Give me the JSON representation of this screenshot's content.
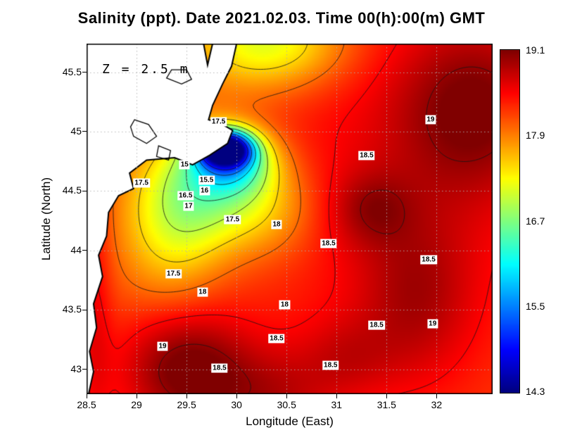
{
  "title": "Salinity (ppt). Date 2021.02.03. Time 00(h):00(m) GMT",
  "depth_label": "Z = 2.5 m",
  "axes": {
    "xlabel": "Longitude (East)",
    "ylabel": "Latitude (North)",
    "x_ticks": [
      28.5,
      29,
      29.5,
      30,
      30.5,
      31,
      31.5,
      32
    ],
    "y_ticks": [
      43,
      43.5,
      44,
      44.5,
      45,
      45.5
    ],
    "lon_range": [
      28.5,
      32.56
    ],
    "lat_range": [
      42.79,
      45.74
    ]
  },
  "colorbar": {
    "min": 14.3,
    "max": 19.1,
    "tick_labels": [
      "19.1",
      "17.9",
      "16.7",
      "15.5",
      "14.3"
    ]
  },
  "colors": {
    "land": "#ffffff",
    "coast": "#000000",
    "grid": "#b0b0b0",
    "contour": "#151515",
    "frame": "#000000"
  },
  "chart_data": {
    "type": "heatmap",
    "variable": "Salinity (ppt)",
    "date": "2021.02.03",
    "time": "00(h):00(m) GMT",
    "depth_m": 2.5,
    "colormap": "jet",
    "value_range": [
      14.3,
      19.1
    ],
    "contour_levels": [
      15,
      15.5,
      16,
      16.5,
      17,
      17.5,
      18,
      18.5,
      19
    ],
    "field_model": {
      "base": 18.2,
      "blobs": [
        {
          "x": 29.88,
          "y": 44.86,
          "sx": 0.18,
          "sy": 0.1,
          "amp": -3.6
        },
        {
          "x": 29.95,
          "y": 44.75,
          "sx": 0.28,
          "sy": 0.18,
          "amp": -1.5
        },
        {
          "x": 29.75,
          "y": 44.55,
          "sx": 0.42,
          "sy": 0.35,
          "amp": -1.15
        },
        {
          "x": 29.35,
          "y": 44.2,
          "sx": 0.38,
          "sy": 0.45,
          "amp": -0.8
        },
        {
          "x": 30.35,
          "y": 44.35,
          "sx": 0.35,
          "sy": 0.3,
          "amp": -0.5
        },
        {
          "x": 30.3,
          "y": 45.75,
          "sx": 0.55,
          "sy": 0.28,
          "amp": -1.15
        },
        {
          "x": 32.4,
          "y": 45.2,
          "sx": 0.55,
          "sy": 0.5,
          "amp": 0.75
        },
        {
          "x": 31.8,
          "y": 43.6,
          "sx": 0.4,
          "sy": 0.5,
          "amp": 0.5
        },
        {
          "x": 31.35,
          "y": 44.35,
          "sx": 0.28,
          "sy": 0.22,
          "amp": 0.45
        },
        {
          "x": 29.5,
          "y": 43.0,
          "sx": 0.45,
          "sy": 0.35,
          "amp": 0.95
        },
        {
          "x": 30.35,
          "y": 42.75,
          "sx": 0.45,
          "sy": 0.3,
          "amp": 0.5
        },
        {
          "x": 31.1,
          "y": 43.1,
          "sx": 0.35,
          "sy": 0.25,
          "amp": 0.35
        },
        {
          "x": 31.6,
          "y": 44.6,
          "sx": 1.2,
          "sy": 1.2,
          "amp": 0.35
        },
        {
          "x": 28.58,
          "y": 43.6,
          "sx": 0.12,
          "sy": 0.9,
          "amp": 0.35
        }
      ]
    },
    "contour_labels": [
      {
        "text": "17.5",
        "lon": 29.82,
        "lat": 45.08
      },
      {
        "text": "19",
        "lon": 31.94,
        "lat": 45.1
      },
      {
        "text": "18.5",
        "lon": 31.3,
        "lat": 44.8
      },
      {
        "text": "15",
        "lon": 29.48,
        "lat": 44.72
      },
      {
        "text": "17.5",
        "lon": 29.05,
        "lat": 44.57
      },
      {
        "text": "15.5",
        "lon": 29.7,
        "lat": 44.59
      },
      {
        "text": "16",
        "lon": 29.68,
        "lat": 44.5
      },
      {
        "text": "16.5",
        "lon": 29.49,
        "lat": 44.46
      },
      {
        "text": "17",
        "lon": 29.52,
        "lat": 44.37
      },
      {
        "text": "17.5",
        "lon": 29.96,
        "lat": 44.26
      },
      {
        "text": "18",
        "lon": 30.4,
        "lat": 44.22
      },
      {
        "text": "18.5",
        "lon": 30.92,
        "lat": 44.06
      },
      {
        "text": "18.5",
        "lon": 31.92,
        "lat": 43.92
      },
      {
        "text": "17.5",
        "lon": 29.37,
        "lat": 43.8
      },
      {
        "text": "18",
        "lon": 29.66,
        "lat": 43.65
      },
      {
        "text": "18",
        "lon": 30.48,
        "lat": 43.54
      },
      {
        "text": "18.5",
        "lon": 31.4,
        "lat": 43.37
      },
      {
        "text": "19",
        "lon": 31.96,
        "lat": 43.38
      },
      {
        "text": "18.5",
        "lon": 30.4,
        "lat": 43.26
      },
      {
        "text": "19",
        "lon": 29.26,
        "lat": 43.19
      },
      {
        "text": "18.5",
        "lon": 29.83,
        "lat": 43.01
      },
      {
        "text": "18.5",
        "lon": 30.94,
        "lat": 43.03
      }
    ],
    "land_polygon": [
      [
        28.5,
        45.74
      ],
      [
        29.67,
        45.74
      ],
      [
        29.71,
        45.56
      ],
      [
        29.76,
        45.74
      ],
      [
        30.0,
        45.74
      ],
      [
        29.95,
        45.55
      ],
      [
        29.86,
        45.4
      ],
      [
        29.76,
        45.22
      ],
      [
        29.72,
        45.1
      ],
      [
        29.84,
        45.07
      ],
      [
        29.96,
        45.01
      ],
      [
        29.91,
        44.9
      ],
      [
        29.73,
        44.8
      ],
      [
        29.56,
        44.72
      ],
      [
        29.38,
        44.78
      ],
      [
        29.1,
        44.76
      ],
      [
        28.93,
        44.65
      ],
      [
        28.97,
        44.52
      ],
      [
        28.82,
        44.46
      ],
      [
        28.72,
        44.32
      ],
      [
        28.7,
        44.12
      ],
      [
        28.62,
        43.96
      ],
      [
        28.66,
        43.78
      ],
      [
        28.57,
        43.55
      ],
      [
        28.6,
        43.35
      ],
      [
        28.53,
        43.15
      ],
      [
        28.57,
        42.98
      ],
      [
        28.52,
        42.79
      ],
      [
        28.5,
        42.79
      ]
    ],
    "lakes": [
      [
        [
          28.98,
          45.1
        ],
        [
          29.12,
          45.06
        ],
        [
          29.2,
          44.96
        ],
        [
          29.1,
          44.9
        ],
        [
          28.97,
          44.96
        ],
        [
          28.94,
          45.04
        ]
      ],
      [
        [
          29.22,
          44.88
        ],
        [
          29.34,
          44.84
        ],
        [
          29.32,
          44.76
        ],
        [
          29.2,
          44.79
        ]
      ],
      [
        [
          29.3,
          45.45
        ],
        [
          29.45,
          45.4
        ],
        [
          29.55,
          45.44
        ],
        [
          29.5,
          45.52
        ],
        [
          29.35,
          45.52
        ]
      ]
    ]
  }
}
